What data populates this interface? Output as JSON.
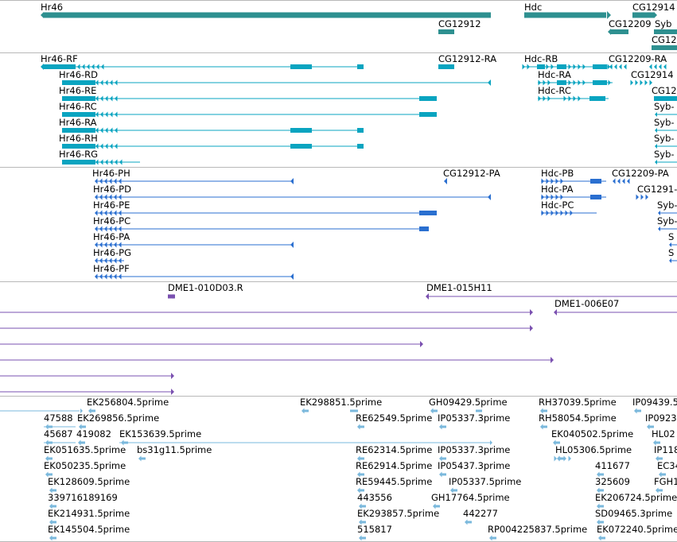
{
  "colors": {
    "gene": "#2e9090",
    "transcript_cyan": "#0aa4c0",
    "transcript_blue": "#2a6fd0",
    "clone_purple": "#7a50b0",
    "est_lightblue": "#7ab8dc",
    "separator": "#b8b8b8",
    "label": "#000000"
  },
  "tracks": [
    {
      "id": "genes",
      "color_key": "gene",
      "labels": [
        {
          "text": "Hr46",
          "bind": "genes.0"
        },
        {
          "text": "Hdc",
          "bind": "genes.1"
        },
        {
          "text": "CG12914",
          "bind": "genes.2"
        },
        {
          "text": "CG12912",
          "bind": "genes.3"
        },
        {
          "text": "CG12209",
          "bind": "genes.4"
        },
        {
          "text": "Syb",
          "bind": "genes.5"
        },
        {
          "text": "CG12",
          "bind": "genes.6"
        }
      ]
    },
    {
      "id": "transcripts_cyan",
      "color_key": "transcript_cyan",
      "labels": [
        "Hr46-RF",
        "Hr46-RD",
        "Hr46-RE",
        "Hr46-RC",
        "Hr46-RA",
        "Hr46-RH",
        "Hr46-RG",
        "CG12912-RA",
        "Hdc-RB",
        "Hdc-RA",
        "Hdc-RC",
        "CG12209-RA",
        "CG12914",
        "CG12",
        "Syb-",
        "Syb-",
        "Syb-",
        "Syb-"
      ]
    },
    {
      "id": "transcripts_blue",
      "color_key": "transcript_blue",
      "labels": [
        "Hr46-PH",
        "Hr46-PD",
        "Hr46-PE",
        "Hr46-PC",
        "Hr46-PA",
        "Hr46-PG",
        "Hr46-PF",
        "CG12912-PA",
        "Hdc-PB",
        "Hdc-PA",
        "Hdc-PC",
        "CG12209-PA",
        "CG1291-",
        "Syb-",
        "Syb-",
        "S",
        "S"
      ]
    },
    {
      "id": "clones",
      "color_key": "clone_purple",
      "labels": [
        "DME1-010D03.R",
        "DME1-015H11",
        "DME1-006E07"
      ]
    },
    {
      "id": "ests",
      "color_key": "est_lightblue",
      "labels": [
        "EK256804.5prime",
        "EK298851.5prime",
        "GH09429.5prime",
        "RH37039.5prime",
        "IP09439.5",
        "47588",
        "EK269856.5prime",
        "RE62549.5prime",
        "IP05337.3prime",
        "RH58054.5prime",
        "IP0923",
        "45687",
        "419082",
        "EK153639.5prime",
        "EK040502.5prime",
        "HL02",
        "EK051635.5prime",
        "bs31g11.5prime",
        "RE62314.5prime",
        "IP05337.3prime",
        "HL05306.5prime",
        "IP118",
        "EK050235.5prime",
        "RE62914.5prime",
        "IP05437.3prime",
        "411677",
        "EC34",
        "EK128609.5prime",
        "RE59445.5prime",
        "IP05337.5prime",
        "325609",
        "FGH1",
        "339716189169",
        "443556",
        "GH17764.5prime",
        "EK206724.5prime",
        "EK214931.5prime",
        "EK293857.5prime",
        "442277",
        "SD09465.3prime",
        "EK145504.5prime",
        "515817",
        "RP004225837.5prime",
        "EK072240.5prime"
      ]
    }
  ]
}
